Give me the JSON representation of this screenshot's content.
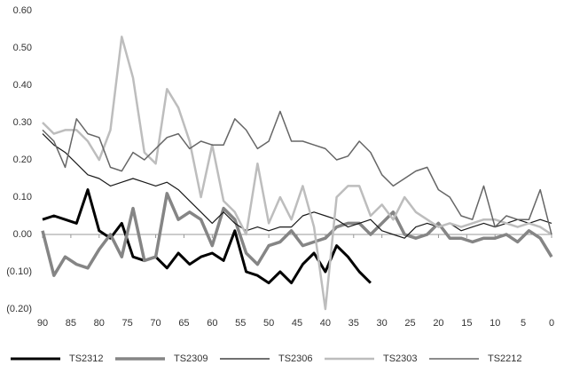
{
  "chart_data": {
    "type": "line",
    "x": [
      90,
      88,
      86,
      84,
      82,
      80,
      78,
      76,
      74,
      72,
      70,
      68,
      66,
      64,
      62,
      60,
      58,
      56,
      54,
      52,
      50,
      48,
      46,
      44,
      42,
      40,
      38,
      36,
      34,
      32,
      30,
      28,
      26,
      24,
      22,
      20,
      18,
      16,
      14,
      12,
      10,
      8,
      6,
      4,
      2,
      0
    ],
    "series": [
      {
        "name": "TS2312",
        "color": "#000000",
        "values": [
          0.04,
          0.05,
          0.04,
          0.03,
          0.12,
          0.01,
          -0.01,
          0.03,
          -0.06,
          -0.07,
          -0.06,
          -0.09,
          -0.05,
          -0.08,
          -0.06,
          -0.05,
          -0.07,
          0.01,
          -0.1,
          -0.11,
          -0.13,
          -0.1,
          -0.13,
          -0.08,
          -0.05,
          -0.1,
          -0.03,
          -0.06,
          -0.1,
          -0.13,
          null,
          null,
          null,
          null,
          null,
          null,
          null,
          null,
          null,
          null,
          null,
          null,
          null,
          null,
          null,
          null
        ]
      },
      {
        "name": "TS2309",
        "color": "#858585",
        "values": [
          0.01,
          -0.11,
          -0.06,
          -0.08,
          -0.09,
          -0.04,
          0.0,
          -0.06,
          0.07,
          -0.07,
          -0.06,
          0.11,
          0.04,
          0.06,
          0.04,
          -0.03,
          0.07,
          0.04,
          -0.05,
          -0.08,
          -0.03,
          -0.02,
          0.01,
          -0.03,
          -0.02,
          -0.01,
          0.02,
          0.03,
          0.03,
          0.0,
          0.03,
          0.06,
          0.0,
          -0.01,
          0.0,
          0.03,
          -0.01,
          -0.01,
          -0.02,
          -0.01,
          -0.01,
          0.0,
          -0.02,
          0.01,
          -0.01,
          -0.06
        ]
      },
      {
        "name": "TS2306",
        "color": "#1a1a1a",
        "values": [
          0.27,
          0.24,
          0.22,
          0.19,
          0.16,
          0.15,
          0.13,
          0.14,
          0.15,
          0.14,
          0.13,
          0.14,
          0.12,
          0.09,
          0.06,
          0.03,
          0.06,
          0.03,
          0.01,
          0.02,
          0.01,
          0.02,
          0.02,
          0.05,
          0.06,
          0.05,
          0.04,
          0.02,
          0.03,
          0.04,
          0.01,
          0.0,
          -0.01,
          0.02,
          0.03,
          0.02,
          0.03,
          0.01,
          0.02,
          0.03,
          0.02,
          0.03,
          0.04,
          0.03,
          0.04,
          0.03
        ]
      },
      {
        "name": "TS2303",
        "color": "#bdbdbd",
        "values": [
          0.3,
          0.27,
          0.28,
          0.28,
          0.25,
          0.2,
          0.28,
          0.53,
          0.42,
          0.22,
          0.19,
          0.39,
          0.34,
          0.25,
          0.1,
          0.24,
          0.09,
          0.06,
          0.0,
          0.19,
          0.03,
          0.1,
          0.04,
          0.13,
          0.02,
          -0.2,
          0.1,
          0.13,
          0.13,
          0.05,
          0.08,
          0.04,
          0.1,
          0.06,
          0.04,
          0.02,
          0.03,
          0.02,
          0.03,
          0.04,
          0.04,
          0.03,
          0.02,
          0.03,
          0.02,
          0.0
        ]
      },
      {
        "name": "TS2212",
        "color": "#666666",
        "values": [
          0.28,
          0.25,
          0.18,
          0.31,
          0.27,
          0.26,
          0.18,
          0.17,
          0.22,
          0.2,
          0.23,
          0.26,
          0.27,
          0.23,
          0.25,
          0.24,
          0.24,
          0.31,
          0.28,
          0.23,
          0.25,
          0.33,
          0.25,
          0.25,
          0.24,
          0.23,
          0.2,
          0.21,
          0.25,
          0.22,
          0.16,
          0.13,
          0.15,
          0.17,
          0.18,
          0.12,
          0.1,
          0.05,
          0.04,
          0.13,
          0.02,
          0.05,
          0.04,
          0.04,
          0.12,
          0.0
        ]
      }
    ],
    "xlim": [
      90,
      0
    ],
    "xticks": [
      90,
      85,
      80,
      75,
      70,
      65,
      60,
      55,
      50,
      45,
      40,
      35,
      30,
      25,
      20,
      15,
      10,
      5,
      0
    ],
    "ylim": [
      -0.2,
      0.6
    ],
    "yticks": [
      {
        "value": 0.6,
        "label": "0.60"
      },
      {
        "value": 0.5,
        "label": "0.50"
      },
      {
        "value": 0.4,
        "label": "0.40"
      },
      {
        "value": 0.3,
        "label": "0.30"
      },
      {
        "value": 0.2,
        "label": "0.20"
      },
      {
        "value": 0.1,
        "label": "0.10"
      },
      {
        "value": 0,
        "label": "0.00"
      },
      {
        "value": -0.1,
        "label": "(0.10)"
      },
      {
        "value": -0.2,
        "label": "(0.20)"
      }
    ],
    "grid": false,
    "legend": "bottom"
  }
}
